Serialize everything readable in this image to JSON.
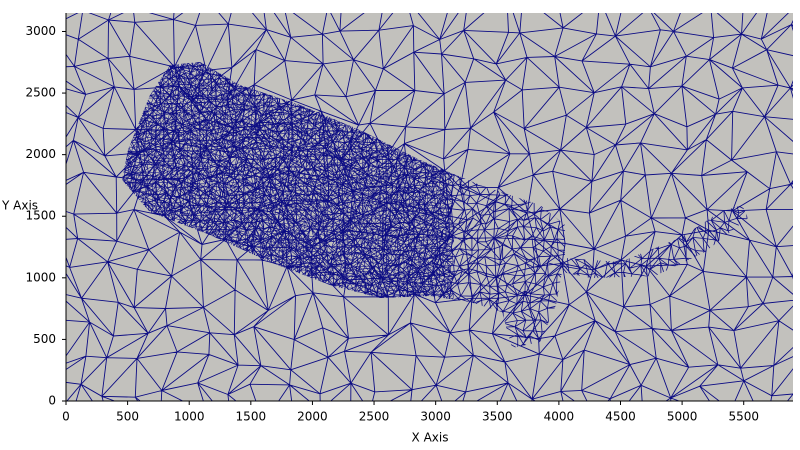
{
  "chart_data": {
    "type": "mesh",
    "x_label": "X Axis",
    "y_label": "Y Axis",
    "xlim": [
      0,
      5900
    ],
    "ylim": [
      0,
      3150
    ],
    "xticks": [
      0,
      500,
      1000,
      1500,
      2000,
      2500,
      3000,
      3500,
      4000,
      4500,
      5000,
      5500
    ],
    "yticks": [
      0,
      500,
      1000,
      1500,
      2000,
      2500,
      3000
    ],
    "background": "#c2c1bd",
    "color": "#0c0c84"
  }
}
